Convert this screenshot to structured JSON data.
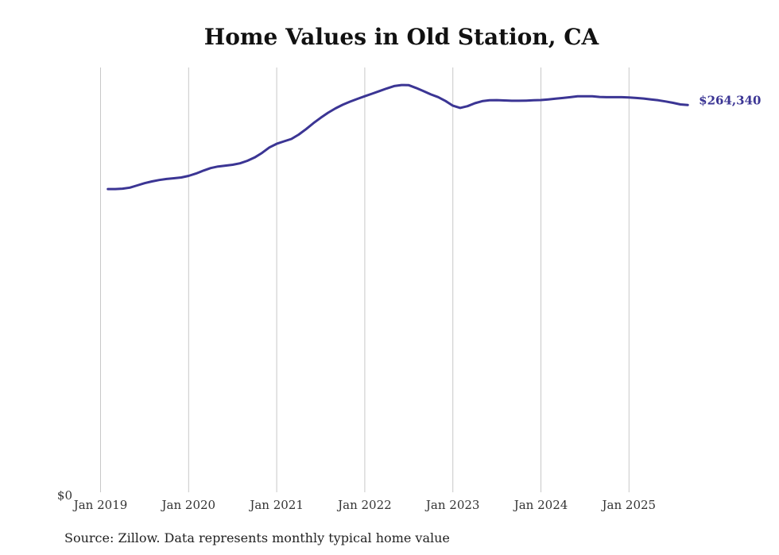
{
  "chart_data": {
    "type": "line",
    "title": "Home Values in Old Station, CA",
    "xlabel": "",
    "ylabel": "",
    "x_tick_labels": [
      "Jan 2019",
      "Jan 2020",
      "Jan 2021",
      "Jan 2022",
      "Jan 2023",
      "Jan 2024",
      "Jan 2025"
    ],
    "y_tick_labels": [
      "$0"
    ],
    "ylim": [
      0,
      290000
    ],
    "grid": "vertical",
    "series_color": "#3b3594",
    "last_value_label": "$264,340",
    "series": [
      {
        "x": [
          "2019-02",
          "2019-03",
          "2019-04",
          "2019-05",
          "2019-06",
          "2019-07",
          "2019-08",
          "2019-09",
          "2019-10",
          "2019-11",
          "2019-12",
          "2020-01",
          "2020-02",
          "2020-03",
          "2020-04",
          "2020-05",
          "2020-06",
          "2020-07",
          "2020-08",
          "2020-09",
          "2020-10",
          "2020-11",
          "2020-12",
          "2021-01",
          "2021-02",
          "2021-03",
          "2021-04",
          "2021-05",
          "2021-06",
          "2021-07",
          "2021-08",
          "2021-09",
          "2021-10",
          "2021-11",
          "2021-12",
          "2022-01",
          "2022-02",
          "2022-03",
          "2022-04",
          "2022-05",
          "2022-06",
          "2022-07",
          "2022-08",
          "2022-09",
          "2022-10",
          "2022-11",
          "2022-12",
          "2023-01",
          "2023-02",
          "2023-03",
          "2023-04",
          "2023-05",
          "2023-06",
          "2023-07",
          "2023-08",
          "2023-09",
          "2023-10",
          "2023-11",
          "2023-12",
          "2024-01",
          "2024-02",
          "2024-03",
          "2024-04",
          "2024-05",
          "2024-06",
          "2024-07",
          "2024-08",
          "2024-09",
          "2024-10",
          "2024-11",
          "2024-12",
          "2025-01",
          "2025-02",
          "2025-03",
          "2025-04",
          "2025-05",
          "2025-06",
          "2025-07",
          "2025-08",
          "2025-09"
        ],
        "values": [
          207000,
          207000,
          207300,
          208000,
          209500,
          211000,
          212200,
          213200,
          213900,
          214400,
          214900,
          216000,
          217600,
          219600,
          221300,
          222400,
          223000,
          223600,
          224600,
          226300,
          228600,
          231700,
          235400,
          237900,
          239600,
          241200,
          244200,
          247900,
          252000,
          255700,
          259100,
          262100,
          264600,
          266700,
          268600,
          270400,
          272100,
          273900,
          275700,
          277300,
          278000,
          277900,
          276000,
          273900,
          271600,
          269800,
          267100,
          263900,
          262400,
          263600,
          265600,
          267000,
          267600,
          267700,
          267500,
          267300,
          267300,
          267400,
          267600,
          267800,
          268200,
          268700,
          269200,
          269700,
          270300,
          270400,
          270300,
          269900,
          269700,
          269700,
          269700,
          269500,
          269200,
          268800,
          268200,
          267600,
          266800,
          265900,
          264800,
          264340
        ]
      }
    ]
  },
  "footer": {
    "source": "Source: Zillow. Data represents monthly typical home value"
  }
}
